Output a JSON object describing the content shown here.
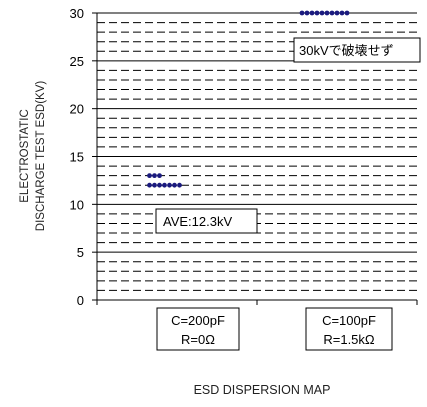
{
  "chart_data": {
    "type": "scatter",
    "title": "",
    "xlabel": "ESD DISPERSION MAP",
    "ylabel_lines": [
      "ELECTROSTATIC",
      "DISCHARGE TEST ESD(KV)"
    ],
    "ylim": [
      0,
      30
    ],
    "yticks": [
      0,
      5,
      10,
      15,
      20,
      25,
      30
    ],
    "grid": {
      "major_step": 5,
      "minor_step": 1,
      "minor_style": "dashed"
    },
    "categories": [
      {
        "lines": [
          "C=200pF",
          "R=0Ω"
        ]
      },
      {
        "lines": [
          "C=100pF",
          "R=1.5kΩ"
        ]
      }
    ],
    "series": [
      {
        "category": 0,
        "y": [
          12,
          12,
          12,
          12,
          12,
          12,
          12,
          13,
          13,
          13
        ],
        "color": "#1a1a7e"
      },
      {
        "category": 1,
        "y": [
          30,
          30,
          30,
          30,
          30,
          30,
          30,
          30,
          30,
          30
        ],
        "color": "#1a1a7e"
      }
    ],
    "annotations": [
      {
        "text": "AVE:12.3kV"
      },
      {
        "text": "30kVで破壊せず"
      }
    ]
  }
}
